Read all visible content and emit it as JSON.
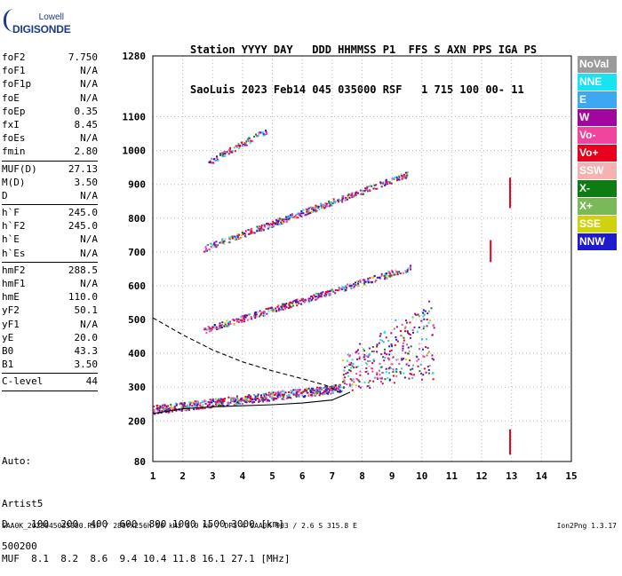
{
  "logo": {
    "line1": "Lowell",
    "line2": "DIGISONDE"
  },
  "header": {
    "line1": "Station YYYY DAY   DDD HHMMSS P1  FFS S AXN PPS IGA PS",
    "line2": "SaoLuis 2023 Feb14 045 035000 RSF   1 715 100 00- 11"
  },
  "params": [
    {
      "name": "foF2",
      "value": "7.750"
    },
    {
      "name": "foF1",
      "value": "N/A"
    },
    {
      "name": "foF1p",
      "value": "N/A"
    },
    {
      "name": "foE",
      "value": "N/A"
    },
    {
      "name": "foEp",
      "value": "0.35"
    },
    {
      "name": "fxI",
      "value": "8.45"
    },
    {
      "name": "foEs",
      "value": "N/A"
    },
    {
      "name": "fmin",
      "value": "2.80",
      "sep_after": true
    },
    {
      "name": "MUF(D)",
      "value": "27.13"
    },
    {
      "name": "M(D)",
      "value": "3.50"
    },
    {
      "name": "D",
      "value": "N/A",
      "sep_after": true
    },
    {
      "name": "h`F",
      "value": "245.0"
    },
    {
      "name": "h`F2",
      "value": "245.0"
    },
    {
      "name": "h`E",
      "value": "N/A"
    },
    {
      "name": "h`Es",
      "value": "N/A",
      "sep_after": true
    },
    {
      "name": "hmF2",
      "value": "288.5"
    },
    {
      "name": "hmF1",
      "value": "N/A"
    },
    {
      "name": "hmE",
      "value": "110.0"
    },
    {
      "name": "yF2",
      "value": "50.1"
    },
    {
      "name": "yF1",
      "value": "N/A"
    },
    {
      "name": "yE",
      "value": "20.0"
    },
    {
      "name": "B0",
      "value": "43.3"
    },
    {
      "name": "B1",
      "value": "3.50",
      "sep_after": true
    },
    {
      "name": "C-level",
      "value": "44",
      "sep_after": true
    }
  ],
  "auto": {
    "line1": "Auto:",
    "line2": "Artist5",
    "line3": "500200"
  },
  "legend": [
    {
      "label": "NoVal",
      "color": "#9a9a9a"
    },
    {
      "label": "NNE",
      "color": "#17e3f2"
    },
    {
      "label": "E",
      "color": "#3ea7f2"
    },
    {
      "label": "W",
      "color": "#a1079f"
    },
    {
      "label": "Vo-",
      "color": "#f0449d"
    },
    {
      "label": "Vo+",
      "color": "#e8001c"
    },
    {
      "label": "SSW",
      "color": "#f4b3b2"
    },
    {
      "label": "X-",
      "color": "#0d7d13"
    },
    {
      "label": "X+",
      "color": "#79b957"
    },
    {
      "label": "SSE",
      "color": "#cfd30f"
    },
    {
      "label": "NNW",
      "color": "#1f1acb"
    }
  ],
  "bottom": {
    "line1": "D    100  200  400  600  800 1000 1500 3000 [km]",
    "line2": "MUF  8.1  8.2  8.6  9.4 10.4 11.8 16.1 27.1 [MHz]"
  },
  "footer": {
    "left": "SAA0K_2023045035000.RSF / 280fx256h 50 kHz 5.0 km / DPS-4 SAA0K 903 / 2.6 S 315.8 E",
    "right": "Ion2Png 1.3.17"
  },
  "chart_data": {
    "type": "scatter",
    "xlabel": "",
    "ylabel": "",
    "xlim": [
      1,
      15
    ],
    "ylim": [
      80,
      1280
    ],
    "x_ticks": [
      1,
      2,
      3,
      4,
      5,
      6,
      7,
      8,
      9,
      10,
      11,
      12,
      13,
      14,
      15
    ],
    "y_ticks": [
      80,
      200,
      300,
      400,
      500,
      600,
      700,
      800,
      900,
      1000,
      1100,
      1280
    ],
    "grid": "dotted",
    "traces": [
      {
        "name": "F trace (1 hop)",
        "x_range": [
          1.0,
          10.4
        ],
        "h_start": 235,
        "h_end": 330,
        "rise_from": 7.3,
        "peak_h": 560
      },
      {
        "name": "F trace (2 hop)",
        "x_range": [
          2.7,
          9.6
        ],
        "h_start": 470,
        "h_end": 655
      },
      {
        "name": "F trace (3 hop)",
        "x_range": [
          2.7,
          9.5
        ],
        "h_start": 712,
        "h_end": 930
      },
      {
        "name": "F trace (4 hop)",
        "x_range": [
          2.8,
          4.8
        ],
        "h_start": 965,
        "h_end": 1060
      }
    ],
    "profile_lines": [
      {
        "name": "O-trace fit",
        "style": "solid",
        "x": [
          1.0,
          2.0,
          3.0,
          4.0,
          5.0,
          6.0,
          7.0,
          7.6
        ],
        "y": [
          222,
          236,
          242,
          245,
          248,
          253,
          262,
          285
        ]
      },
      {
        "name": "density profile",
        "style": "dashed",
        "x": [
          1.0,
          2.0,
          3.0,
          4.0,
          5.0,
          6.0,
          6.8,
          7.25
        ],
        "y": [
          505,
          455,
          410,
          375,
          348,
          325,
          305,
          285
        ]
      }
    ],
    "markers": [
      {
        "x": 12.95,
        "y_range": [
          830,
          920
        ]
      },
      {
        "x": 12.3,
        "y_range": [
          670,
          735
        ]
      },
      {
        "x": 12.95,
        "y_range": [
          100,
          175
        ]
      }
    ]
  }
}
